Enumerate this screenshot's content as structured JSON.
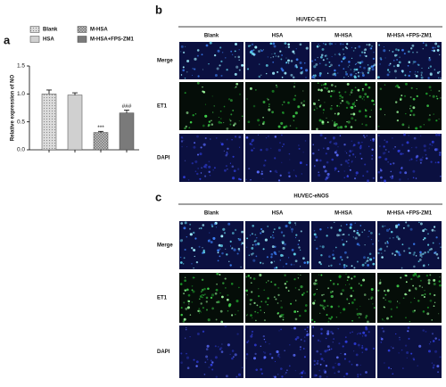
{
  "chart_data": {
    "type": "bar",
    "panel_label": "a",
    "ylabel": "Relative expression of NO",
    "categories": [
      "Blank",
      "HSA",
      "M-HSA",
      "M-HSA+FPS-ZM1"
    ],
    "values": [
      1.0,
      0.98,
      0.31,
      0.66
    ],
    "errors": [
      0.07,
      0.04,
      0.02,
      0.05
    ],
    "colors": [
      "#dcdcdc",
      "#d0d0d0",
      "#c4c4c4",
      "#7a7a7a"
    ],
    "patterns": [
      "dots",
      "none",
      "checker",
      "none"
    ],
    "annotations": [
      null,
      null,
      "***",
      "###"
    ],
    "ylim": [
      0,
      1.5
    ],
    "yticks": [
      {
        "value": 0,
        "label": "0.0"
      },
      0.5,
      {
        "value": 1,
        "label": "1.0"
      },
      1.5
    ]
  },
  "panels": [
    {
      "label": "b",
      "title": "HUVEC-ET1",
      "columns": [
        "Blank",
        "HSA",
        "M-HSA",
        "M-HSA +FPS-ZM1"
      ],
      "rows": [
        "Merge",
        "ET1",
        "DAPI"
      ]
    },
    {
      "label": "c",
      "title": "HUVEC-eNOS",
      "columns": [
        "Blank",
        "HSA",
        "M-HSA",
        "M-HSA +FPS-ZM1"
      ],
      "rows": [
        "Merge",
        "ET1",
        "DAPI"
      ]
    }
  ]
}
